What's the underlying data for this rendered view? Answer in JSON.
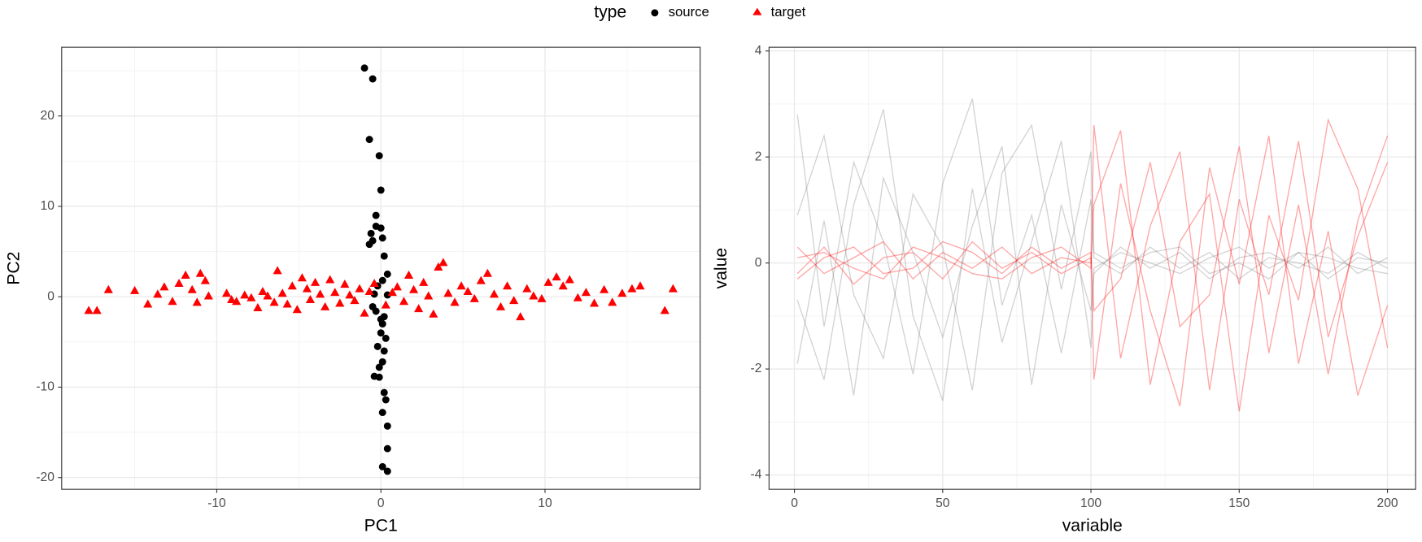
{
  "chart_data": [
    {
      "type": "scatter",
      "legend_title": "type",
      "legend_position": "top",
      "grid": true,
      "xlabel": "PC1",
      "ylabel": "PC2",
      "xlim": [
        -19.45,
        19.45
      ],
      "ylim": [
        -21.3,
        27.6
      ],
      "xticks": [
        -10,
        0,
        10
      ],
      "yticks": [
        -20,
        -10,
        0,
        10,
        20
      ],
      "xminor": [
        -15,
        -5,
        5,
        15
      ],
      "yminor": [
        -15,
        -5,
        5,
        15,
        25
      ],
      "series": [
        {
          "name": "source",
          "color": "#000000",
          "shape": "circle",
          "x": [
            -1,
            -0.5,
            -0.7,
            -0.1,
            0,
            -0.3,
            -0.3,
            0,
            -0.6,
            0.1,
            -0.5,
            -0.7,
            0.2,
            0.4,
            0.1,
            -0.4,
            0.4,
            -0.5,
            -0.3,
            0,
            0.1,
            0,
            0.3,
            -0.2,
            0.2,
            0.1,
            -0.1,
            -0.4,
            0.2,
            0.3,
            0.1,
            0.4,
            0.4,
            0.1,
            0.4,
            -0.1,
            0.2,
            -0.2
          ],
          "values": [
            25.3,
            24.1,
            17.4,
            15.6,
            11.8,
            9,
            7.8,
            7.6,
            7,
            6.5,
            6.2,
            5.8,
            4.5,
            2.5,
            1.8,
            0.3,
            0.2,
            -1.1,
            -1.6,
            -2.5,
            -3,
            -4,
            -4.6,
            -5.5,
            -6,
            -7.2,
            -7.8,
            -8.8,
            -10.6,
            -11.4,
            -12.8,
            -14.3,
            -16.8,
            -18.8,
            -19.3,
            -8.9,
            -2.2,
            1.2
          ]
        },
        {
          "name": "target",
          "color": "#ff0000",
          "shape": "triangle",
          "x": [
            -17.8,
            -17.3,
            -16.6,
            -15,
            -14.2,
            -13.6,
            -13.2,
            -12.7,
            -12.3,
            -11.9,
            -11.5,
            -11.2,
            -11,
            -10.7,
            -10.5,
            -9.4,
            -9.1,
            -8.8,
            -8.3,
            -7.9,
            -7.5,
            -7.2,
            -6.9,
            -6.5,
            -6.3,
            -6,
            -5.7,
            -5.4,
            -5.1,
            -4.8,
            -4.5,
            -4.3,
            -4,
            -3.7,
            -3.4,
            -3.1,
            -2.8,
            -2.5,
            -2.2,
            -1.9,
            -1.6,
            -1.3,
            -1,
            -0.7,
            -0.4,
            0.3,
            0.7,
            1,
            1.4,
            1.7,
            2,
            2.3,
            2.6,
            2.9,
            3.2,
            3.5,
            3.8,
            4.1,
            4.5,
            4.9,
            5.3,
            5.7,
            6.1,
            6.5,
            6.9,
            7.3,
            7.7,
            8.1,
            8.5,
            8.9,
            9.3,
            9.8,
            10.2,
            10.7,
            11.1,
            11.5,
            12,
            12.5,
            13,
            13.6,
            14.1,
            14.7,
            15.3,
            15.8,
            17.3,
            17.8
          ],
          "values": [
            -1.5,
            -1.5,
            0.8,
            0.7,
            -0.8,
            0.3,
            1.1,
            -0.5,
            1.5,
            2.4,
            0.8,
            -0.6,
            2.6,
            1.8,
            0.1,
            0.4,
            -0.3,
            -0.5,
            0.2,
            -0.1,
            -1.2,
            0.6,
            0.1,
            -0.6,
            2.9,
            0.4,
            -0.8,
            1.2,
            -1.4,
            2.1,
            0.9,
            -0.3,
            1.6,
            0.3,
            -1.1,
            1.9,
            0.5,
            -0.7,
            1.4,
            0.2,
            -0.4,
            0.9,
            -1.8,
            0.6,
            1.5,
            -0.9,
            0.5,
            1.1,
            -0.5,
            2.4,
            0.8,
            -1.3,
            1.6,
            0.1,
            -1.9,
            3.3,
            3.8,
            0.4,
            -0.6,
            1.2,
            0.6,
            -0.2,
            1.8,
            2.6,
            0.3,
            -1.1,
            1.2,
            -0.4,
            -2.2,
            0.9,
            0.1,
            -0.2,
            1.6,
            2.2,
            1.2,
            1.9,
            -0.1,
            0.5,
            -0.7,
            0.8,
            -0.6,
            0.4,
            0.9,
            1.2,
            -1.5,
            0.9
          ]
        }
      ]
    },
    {
      "type": "line",
      "grid": true,
      "opacity": 0.35,
      "xlabel": "variable",
      "ylabel": "value",
      "xlim": [
        -8.56,
        209.5
      ],
      "ylim": [
        -4.27,
        4.07
      ],
      "xticks": [
        0,
        50,
        100,
        150,
        200
      ],
      "yticks": [
        -4,
        -2,
        0,
        2,
        4
      ],
      "xminor": [
        25,
        75,
        125,
        175
      ],
      "yminor": [
        -3,
        -1,
        1,
        3
      ],
      "x": [
        1,
        10,
        20,
        30,
        40,
        50,
        60,
        70,
        80,
        90,
        100,
        101,
        110,
        120,
        130,
        140,
        150,
        160,
        170,
        180,
        190,
        200
      ],
      "series": [
        {
          "color": "#808080",
          "values": [
            2.8,
            -1.2,
            1.9,
            0.4,
            -2.1,
            1.5,
            3.1,
            -0.8,
            0.9,
            -1.7,
            1.2,
            0.1,
            -0.2,
            0.3,
            -0.1,
            0.2,
            -0.3,
            0.1,
            0,
            -0.2,
            0.2,
            -0.1
          ]
        },
        {
          "color": "#808080",
          "values": [
            -1.9,
            0.8,
            -2.5,
            1.6,
            0.2,
            -1.4,
            0.7,
            2.2,
            -2.3,
            1.1,
            -0.9,
            -0.2,
            0.3,
            -0.1,
            0.2,
            -0.3,
            0.1,
            0.2,
            -0.1,
            0.3,
            -0.2,
            0.1
          ]
        },
        {
          "color": "#808080",
          "values": [
            0.9,
            2.4,
            -0.6,
            -1.8,
            1.3,
            0.3,
            -2.4,
            1.7,
            2.6,
            -0.5,
            2.1,
            0.2,
            -0.1,
            0.2,
            0.3,
            -0.2,
            0,
            -0.3,
            0.2,
            0.1,
            -0.1,
            -0.2
          ]
        },
        {
          "color": "#808080",
          "values": [
            -0.7,
            -2.2,
            1.1,
            2.9,
            -1,
            -2.6,
            1.4,
            -1.5,
            0.4,
            2.3,
            -1.6,
            -0.1,
            0.2,
            0,
            -0.2,
            0.1,
            0.3,
            -0.1,
            0.2,
            -0.3,
            0.1,
            0
          ]
        },
        {
          "color": "#ff0000",
          "values": [
            0.3,
            -0.2,
            0.1,
            0.4,
            -0.3,
            0.2,
            -0.1,
            0.3,
            -0.2,
            0.1,
            0,
            2.6,
            -1.8,
            0.7,
            2.1,
            -2.4,
            1.2,
            -0.6,
            2.3,
            -1.4,
            0.5,
            1.9
          ]
        },
        {
          "color": "#ff0000",
          "values": [
            -0.2,
            0.3,
            -0.4,
            0.1,
            0.2,
            -0.3,
            0.4,
            -0.1,
            0.2,
            -0.2,
            0.1,
            -2.2,
            1.5,
            -0.9,
            -2.7,
            1.8,
            -0.4,
            2.4,
            -1.9,
            0.6,
            -2.5,
            -0.8
          ]
        },
        {
          "color": "#ff0000",
          "values": [
            0.1,
            0.2,
            -0.1,
            -0.3,
            0.3,
            0.1,
            -0.2,
            -0.3,
            0.1,
            0.3,
            -0.1,
            1.1,
            2.5,
            -2.3,
            0.4,
            1.3,
            -2.8,
            0.9,
            -0.7,
            2.7,
            1.4,
            -1.6
          ]
        },
        {
          "color": "#ff0000",
          "values": [
            -0.3,
            0.1,
            0.3,
            -0.2,
            -0.1,
            0.4,
            0.2,
            -0.2,
            0.3,
            -0.1,
            0.2,
            -0.9,
            -0.3,
            1.9,
            -1.2,
            -0.6,
            2.2,
            -1.7,
            1.1,
            -2.1,
            0.8,
            2.4
          ]
        }
      ]
    }
  ]
}
